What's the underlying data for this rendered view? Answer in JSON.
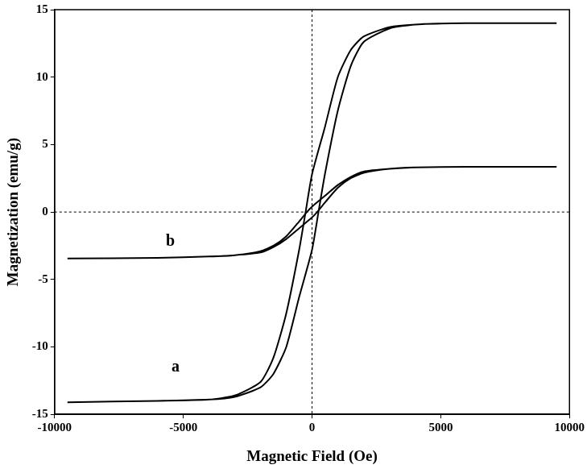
{
  "chart_data": {
    "type": "line",
    "x_label": "Magnetic Field (Oe)",
    "y_label": "Magnetization (emu/g)",
    "xlim": [
      -10000,
      10000
    ],
    "xticks": [
      -10000,
      -5000,
      0,
      5000,
      10000
    ],
    "ylim": [
      -15,
      15
    ],
    "yticks": [
      -15,
      -10,
      -5,
      0,
      5,
      10,
      15
    ],
    "grid": false,
    "series": [
      {
        "color": "#000000",
        "x": [
          -9500,
          -6000,
          -4000,
          -3000,
          -2000,
          -1500,
          -1000,
          -500,
          0,
          250,
          500,
          1000,
          1500,
          2000,
          3000,
          4000,
          6000,
          9500,
          9500,
          6000,
          4000,
          3000,
          2000,
          1500,
          1000,
          500,
          0,
          -250,
          -500,
          -1000,
          -1500,
          -2000,
          -3000,
          -4000,
          -6000,
          -9500
        ],
        "values": [
          -14.1,
          -14.0,
          -13.9,
          -13.7,
          -13.0,
          -12.0,
          -10.0,
          -6.3,
          -2.8,
          0,
          2.8,
          7.5,
          10.8,
          12.6,
          13.6,
          13.9,
          14.0,
          14.0,
          14.0,
          14.0,
          13.9,
          13.7,
          13.0,
          12.0,
          10.0,
          6.3,
          2.8,
          0,
          -2.8,
          -7.5,
          -10.8,
          -12.6,
          -13.6,
          -13.9,
          -14.0,
          -14.1
        ]
      },
      {
        "color": "#000000",
        "x": [
          -9500,
          -6000,
          -4000,
          -3000,
          -2000,
          -1500,
          -1000,
          -500,
          0,
          200,
          500,
          1000,
          1500,
          2000,
          3000,
          4000,
          6000,
          9500,
          9500,
          6000,
          4000,
          3000,
          2000,
          1500,
          1000,
          500,
          0,
          -200,
          -500,
          -1000,
          -1500,
          -2000,
          -3000,
          -4000,
          -6000,
          -9500
        ],
        "values": [
          -3.45,
          -3.4,
          -3.3,
          -3.2,
          -3.0,
          -2.6,
          -2.0,
          -1.2,
          -0.4,
          0,
          0.7,
          1.8,
          2.5,
          2.9,
          3.2,
          3.3,
          3.35,
          3.35,
          3.35,
          3.35,
          3.3,
          3.2,
          3.0,
          2.6,
          2.0,
          1.2,
          0.4,
          0,
          -0.7,
          -1.8,
          -2.5,
          -2.9,
          -3.2,
          -3.3,
          -3.4,
          -3.45
        ]
      }
    ],
    "annotations": [
      {
        "text": "a",
        "x": -5300,
        "y": -11.5
      },
      {
        "text": "b",
        "x": -5500,
        "y": -2.2
      }
    ],
    "reference_lines": [
      {
        "axis": "x",
        "value": 0,
        "line_style": "dashed"
      },
      {
        "axis": "y",
        "value": 0,
        "line_style": "dashed"
      }
    ]
  }
}
